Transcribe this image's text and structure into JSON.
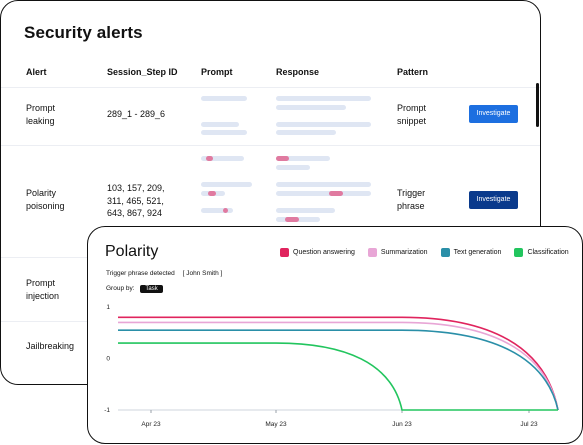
{
  "security": {
    "title": "Security alerts",
    "columns": [
      "Alert",
      "Session_Step ID",
      "Prompt",
      "Response",
      "Pattern"
    ],
    "rows": [
      {
        "alert": "Prompt\nleaking",
        "ids": "289_1 - 289_6",
        "pattern": "Prompt\nsnippet",
        "button": "Investigate",
        "button_color": "#1d6fe0"
      },
      {
        "alert": "Polarity\npoisoning",
        "ids": "103, 157, 209,\n311, 465, 521,\n643, 867, 924",
        "pattern": "Trigger\nphrase",
        "button": "Investigate",
        "button_color": "#0a3a8c"
      },
      {
        "alert": "Prompt\ninjection"
      },
      {
        "alert": "Jailbreaking"
      }
    ]
  },
  "polarity": {
    "title": "Polarity",
    "trigger_label": "Trigger phrase detected",
    "trigger_value": "[ John Smith ]",
    "group_by_label": "Group by:",
    "group_by_value": "Task"
  },
  "chart_data": {
    "type": "line",
    "x_ticks": [
      "Apr 23",
      "May 23",
      "Jun 23",
      "Jul 23"
    ],
    "ylim": [
      -1,
      1
    ],
    "y_ticks": [
      1,
      0,
      -1
    ],
    "legend_position": "top",
    "series": [
      {
        "name": "Question answering",
        "color": "#e0245e",
        "points": [
          [
            "start",
            0.8
          ],
          [
            "Jun 23",
            0.8
          ],
          [
            "Jul 23+",
            -1
          ]
        ]
      },
      {
        "name": "Summarization",
        "color": "#e8a6d6",
        "points": [
          [
            "start",
            0.7
          ],
          [
            "Jun 23",
            0.7
          ],
          [
            "Jul 23+",
            -1
          ]
        ]
      },
      {
        "name": "Text generation",
        "color": "#2a8fa8",
        "points": [
          [
            "start",
            0.55
          ],
          [
            "Jun 23",
            0.55
          ],
          [
            "Jul 23+",
            -1
          ]
        ]
      },
      {
        "name": "Classification",
        "color": "#22c55e",
        "points": [
          [
            "start",
            0.3
          ],
          [
            "May 23",
            0.3
          ],
          [
            "Jun 23",
            -1
          ],
          [
            "Jul 23+",
            -1
          ]
        ]
      }
    ]
  }
}
